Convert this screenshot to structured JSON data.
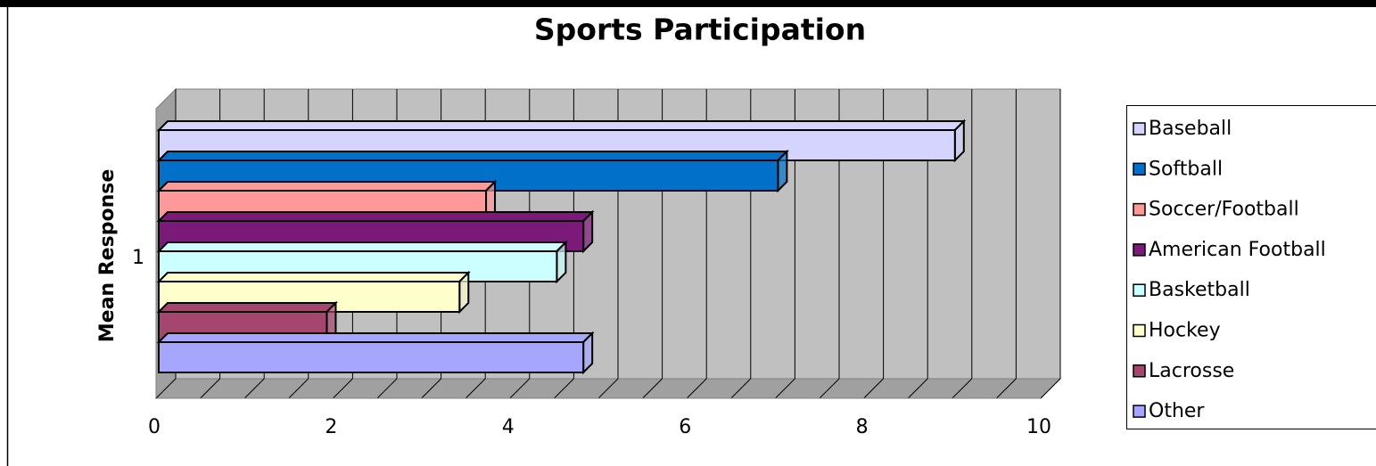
{
  "chart_data": {
    "type": "bar3d",
    "title": "Sports Participation",
    "y_label": "Mean Response",
    "categories": [
      "1"
    ],
    "series": [
      {
        "name": "Baseball",
        "color": "#d4d4ff",
        "values": [
          9.0
        ]
      },
      {
        "name": "Softball",
        "color": "#0070c8",
        "values": [
          7.0
        ]
      },
      {
        "name": "Soccer/Football",
        "color": "#ff9999",
        "values": [
          3.7
        ]
      },
      {
        "name": "American Football",
        "color": "#7b1a78",
        "values": [
          4.8
        ]
      },
      {
        "name": "Basketball",
        "color": "#ccffff",
        "values": [
          4.5
        ]
      },
      {
        "name": "Hockey",
        "color": "#ffffcc",
        "values": [
          3.4
        ]
      },
      {
        "name": "Lacrosse",
        "color": "#a5466e",
        "values": [
          1.9
        ]
      },
      {
        "name": "Other",
        "color": "#a6a6ff",
        "values": [
          4.8
        ]
      }
    ],
    "xlim": [
      0,
      10
    ],
    "xticks": [
      0,
      2,
      4,
      6,
      8,
      10
    ],
    "xgridlines": [
      0,
      0.5,
      1,
      1.5,
      2,
      2.5,
      3,
      3.5,
      4,
      4.5,
      5,
      5.5,
      6,
      6.5,
      7,
      7.5,
      8,
      8.5,
      9,
      9.5,
      10
    ],
    "grid": true,
    "legend": "right"
  }
}
